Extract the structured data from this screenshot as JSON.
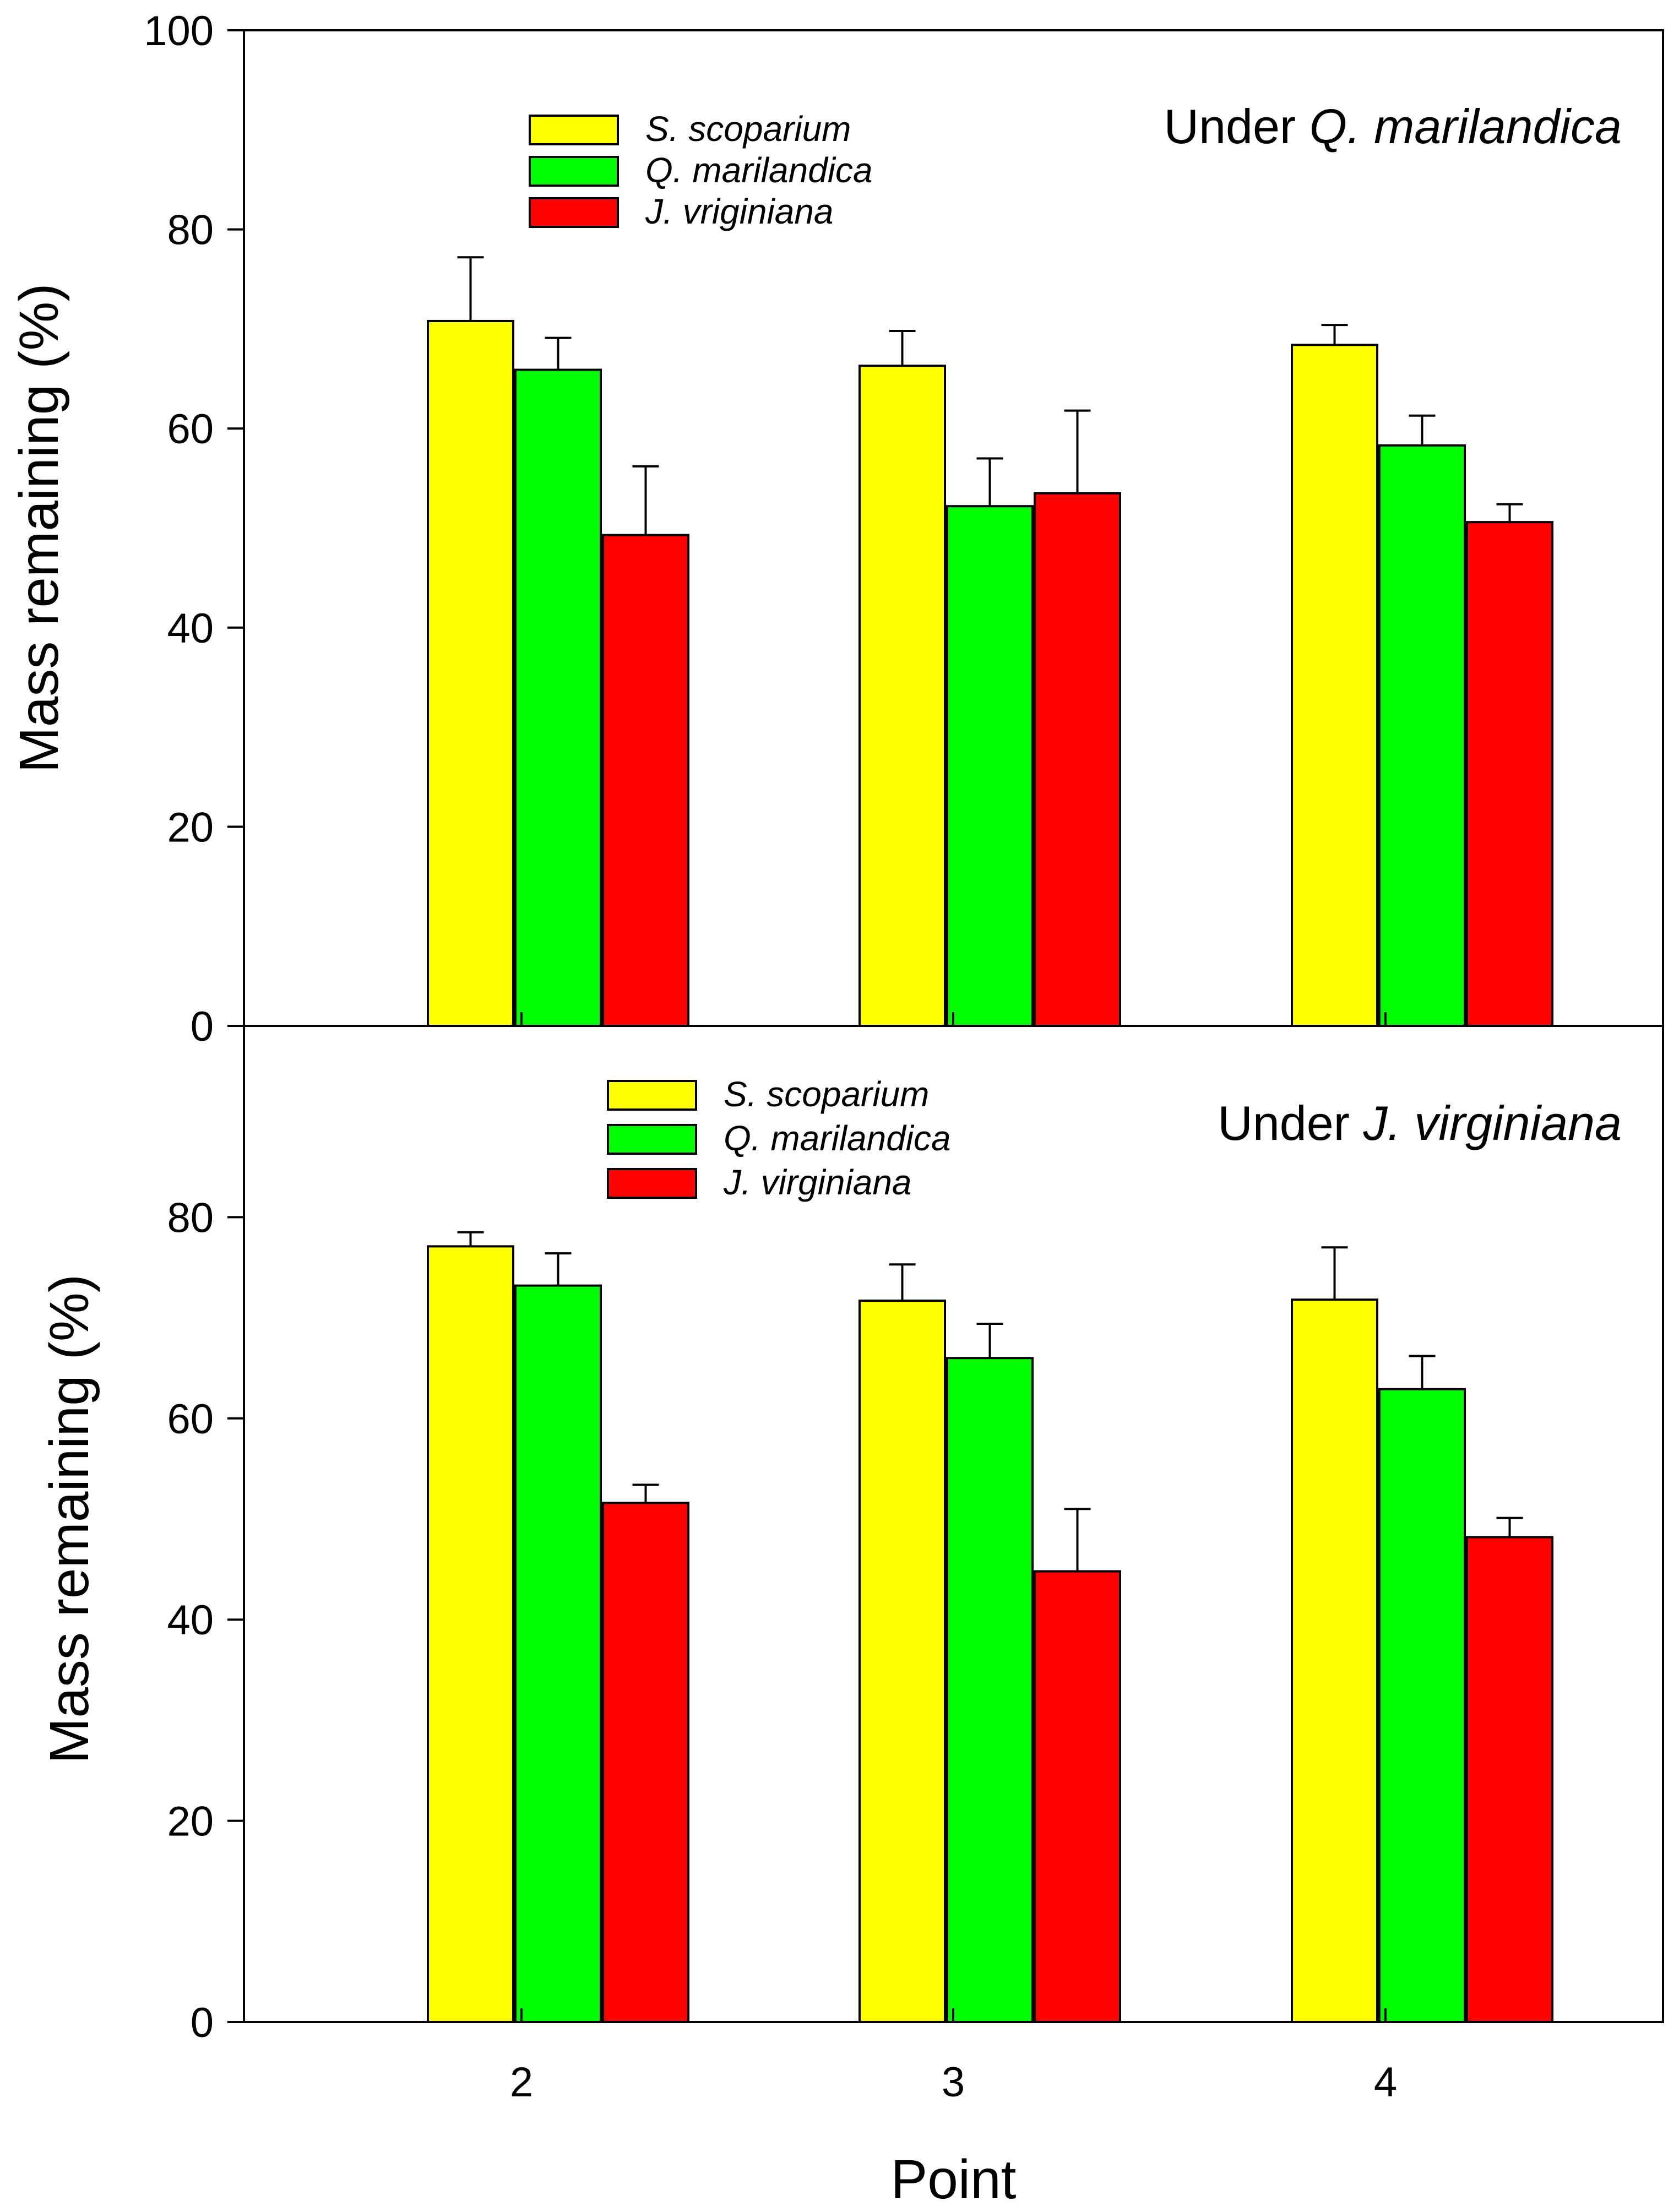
{
  "chart_data": [
    {
      "type": "bar",
      "panel": "top",
      "title": "",
      "annotation_prefix": "Under",
      "annotation_species": "Q. marilandica",
      "xlabel": "",
      "ylabel": "Mass remaining (%)",
      "ylim": [
        0,
        100
      ],
      "yticks": [
        0,
        20,
        40,
        60,
        80,
        100
      ],
      "categories": [
        "2",
        "3",
        "4"
      ],
      "show_x_tick_labels": false,
      "grid": false,
      "legend_position": "top-left",
      "series": [
        {
          "name": "S. scoparium",
          "color": "#ffff00",
          "values": [
            70.8,
            66.3,
            68.4
          ],
          "errors": [
            6.4,
            3.5,
            2.0
          ]
        },
        {
          "name": "Q. marilandica",
          "color": "#00ff00",
          "values": [
            65.9,
            52.2,
            58.3
          ],
          "errors": [
            3.2,
            4.8,
            3.0
          ]
        },
        {
          "name": "J. vriginiana",
          "color": "#ff0000",
          "values": [
            49.3,
            53.5,
            50.6
          ],
          "errors": [
            6.9,
            8.3,
            1.8
          ]
        }
      ]
    },
    {
      "type": "bar",
      "panel": "bottom",
      "title": "",
      "annotation_prefix": "Under",
      "annotation_species": "J. virginiana",
      "xlabel": "Point",
      "ylabel": "Mass remaining (%)",
      "ylim": [
        0,
        100
      ],
      "yticks": [
        0,
        20,
        40,
        60,
        80
      ],
      "categories": [
        "2",
        "3",
        "4"
      ],
      "show_x_tick_labels": true,
      "grid": false,
      "legend_position": "top-left",
      "series": [
        {
          "name": "S. scoparium",
          "color": "#ffff00",
          "values": [
            77.1,
            71.7,
            71.8
          ],
          "errors": [
            1.4,
            3.6,
            5.2
          ]
        },
        {
          "name": "Q. marilandica",
          "color": "#00ff00",
          "values": [
            73.2,
            66.0,
            62.9
          ],
          "errors": [
            3.2,
            3.4,
            3.3
          ]
        },
        {
          "name": "J. virginiana",
          "color": "#ff0000",
          "values": [
            51.6,
            44.8,
            48.2
          ],
          "errors": [
            1.8,
            6.2,
            1.9
          ]
        }
      ]
    }
  ]
}
